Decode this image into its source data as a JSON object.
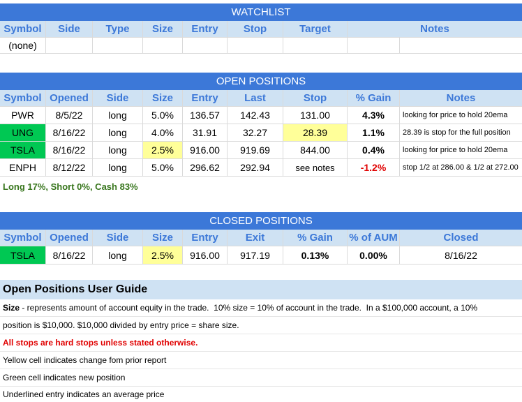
{
  "watchlist": {
    "title": "WATCHLIST",
    "headers": [
      "Symbol",
      "Side",
      "Type",
      "Size",
      "Entry",
      "Stop",
      "Target",
      "Notes"
    ],
    "empty_text": "(none)"
  },
  "open_positions": {
    "title": "OPEN POSITIONS",
    "headers": [
      "Symbol",
      "Opened",
      "Side",
      "Size",
      "Entry",
      "Last",
      "Stop",
      "% Gain",
      "Notes"
    ],
    "rows": [
      {
        "symbol": "PWR",
        "opened": "8/5/22",
        "side": "long",
        "size": "5.0%",
        "entry": "136.57",
        "last": "142.43",
        "stop": "131.00",
        "gain": "4.3%",
        "notes": "looking for price to hold 20ema"
      },
      {
        "symbol": "UNG",
        "opened": "8/16/22",
        "side": "long",
        "size": "4.0%",
        "entry": "31.91",
        "last": "32.27",
        "stop": "28.39",
        "gain": "1.1%",
        "notes": "28.39 is stop for the full position"
      },
      {
        "symbol": "TSLA",
        "opened": "8/16/22",
        "side": "long",
        "size": "2.5%",
        "entry": "916.00",
        "last": "919.69",
        "stop": "844.00",
        "gain": "0.4%",
        "notes": "looking for price to hold 20ema"
      },
      {
        "symbol": "ENPH",
        "opened": "8/12/22",
        "side": "long",
        "size": "5.0%",
        "entry": "296.62",
        "last": "292.94",
        "stop": "see notes",
        "gain": "-1.2%",
        "notes": "stop 1/2 at 286.00 & 1/2 at 272.00"
      }
    ],
    "summary": "Long 17%, Short 0%, Cash 83%"
  },
  "closed_positions": {
    "title": "CLOSED POSITIONS",
    "headers": [
      "Symbol",
      "Opened",
      "Side",
      "Size",
      "Entry",
      "Exit",
      "% Gain",
      "% of AUM",
      "Closed"
    ],
    "rows": [
      {
        "symbol": "TSLA",
        "opened": "8/16/22",
        "side": "long",
        "size": "2.5%",
        "entry": "916.00",
        "exit": "917.19",
        "gain": "0.13%",
        "aum": "0.00%",
        "closed": "8/16/22"
      }
    ]
  },
  "guide": {
    "title": "Open Positions User Guide",
    "size_label": "Size",
    "size_text_1": " - represents amount of account equity in the trade.  10% size = 10% of account in the trade.  In a $100,000 account, a 10%",
    "size_text_2": "position is $10,000.  $10,000 divided by entry price = share size.",
    "stops_note": "All stops are hard stops unless stated otherwise.",
    "yellow_note": "Yellow cell indicates change fom prior report",
    "green_note": "Green cell indicates new position",
    "underline_note": "Underlined entry indicates an average price"
  },
  "colors": {
    "title_bar": "#3c78d8",
    "header_bg": "#cfe2f3",
    "new_position_green": "#00c853",
    "changed_yellow": "#ffff99",
    "loss_red": "#e00000",
    "summary_green": "#38761d"
  }
}
